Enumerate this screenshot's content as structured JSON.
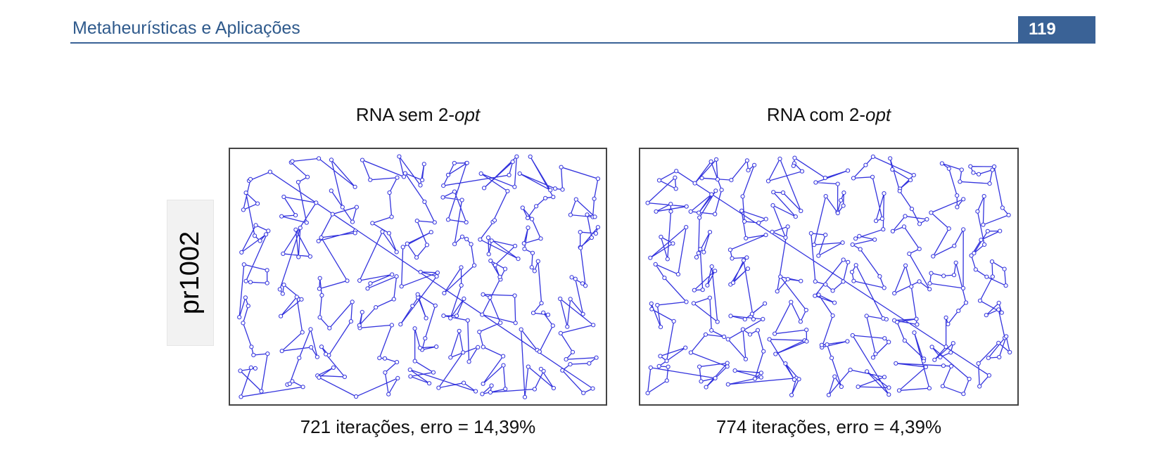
{
  "header": {
    "title": "Metaheurísticas e Aplicações",
    "page_number": "119"
  },
  "row_label": "pr1002",
  "colors": {
    "accent": "#3a6296",
    "header_text": "#2f5a8c",
    "tour_line": "#3333dd"
  },
  "panels": [
    {
      "title_main": "RNA sem 2-",
      "title_italic": "opt",
      "caption": "721 iterações, erro = 14,39%",
      "seed": 17
    },
    {
      "title_main": "RNA com 2-",
      "title_italic": "opt",
      "caption": "774 iterações, erro = 4,39%",
      "seed": 71
    }
  ]
}
